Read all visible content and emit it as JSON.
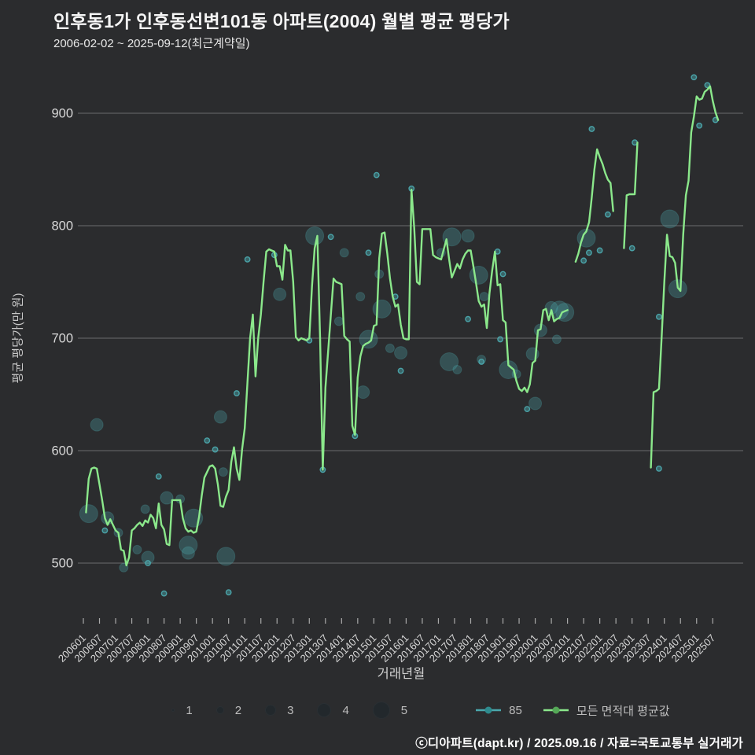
{
  "header": {
    "title": "인후동1가 인후동선변101동 아파트(2004) 월별 평균 평당가",
    "subtitle": "2006-02-02 ~ 2025-09-12(최근계약일)"
  },
  "footer": {
    "text": "ⓒ디아파트(dapt.kr) / 2025.09.16 / 자료=국토교통부 실거래가"
  },
  "axes": {
    "x_title": "거래년월",
    "y_title": "평균 평당가(만 원)",
    "y_ticks": [
      500,
      600,
      700,
      800,
      900
    ],
    "x_ticks": [
      "200601",
      "200607",
      "200701",
      "200707",
      "200801",
      "200807",
      "200901",
      "200907",
      "201001",
      "201007",
      "201101",
      "201107",
      "201201",
      "201207",
      "201301",
      "201307",
      "201401",
      "201407",
      "201501",
      "201507",
      "201601",
      "201607",
      "201701",
      "201707",
      "201801",
      "201807",
      "201901",
      "201907",
      "202001",
      "202007",
      "202101",
      "202107",
      "202201",
      "202207",
      "202301",
      "202307",
      "202401",
      "202407",
      "202501",
      "202507"
    ]
  },
  "legend": {
    "sizes": [
      "1",
      "2",
      "3",
      "4",
      "5"
    ],
    "series": [
      {
        "label": "85",
        "color": "#4ba8ad",
        "dot_color": "#2e8b8e"
      },
      {
        "label": "모든 면적대 평균값",
        "color": "#8be88b",
        "dot_color": "#55a857"
      }
    ]
  },
  "colors": {
    "background": "#2b2c2e",
    "gridline": "rgba(255,255,255,0.30)",
    "tick": "#aaaaaa",
    "axis_text": "#d8d8d8",
    "line_green": "#8be88b",
    "bubble_teal": "#4ba8ad"
  },
  "chart_data": {
    "type": "line+scatter",
    "title": "인후동1가 인후동선변101동 아파트(2004) 월별 평균 평당가",
    "xlabel": "거래년월",
    "ylabel": "평균 평당가(만 원)",
    "x_start_month": "2006-01",
    "x_end_month": "2025-09",
    "ylim": [
      460,
      945
    ],
    "grid": true,
    "legend_position": "bottom",
    "series": [
      {
        "name": "모든 면적대 평균값",
        "type": "line",
        "color": "#8be88b",
        "monthly_values": [
          null,
          545,
          575,
          584,
          585,
          584,
          570,
          556,
          540,
          534,
          539,
          534,
          529,
          527,
          512,
          511,
          498,
          505,
          529,
          531,
          534,
          536,
          533,
          538,
          536,
          543,
          540,
          531,
          553,
          534,
          530,
          517,
          516,
          556,
          556,
          556,
          556,
          540,
          531,
          528,
          529,
          527,
          528,
          541,
          560,
          576,
          581,
          586,
          587,
          584,
          570,
          551,
          550,
          559,
          565,
          590,
          603,
          584,
          574,
          601,
          620,
          660,
          700,
          721,
          666,
          700,
          721,
          750,
          777,
          779,
          778,
          777,
          764,
          764,
          752,
          783,
          778,
          778,
          750,
          701,
          698,
          700,
          699,
          698,
          700,
          746,
          780,
          791,
          700,
          583,
          656,
          688,
          720,
          753,
          750,
          749,
          748,
          702,
          699,
          697,
          622,
          614,
          665,
          684,
          693,
          695,
          696,
          698,
          711,
          712,
          771,
          793,
          794,
          775,
          753,
          737,
          728,
          730,
          712,
          700,
          699,
          699,
          832,
          798,
          750,
          748,
          797,
          797,
          797,
          797,
          774,
          772,
          771,
          770,
          779,
          788,
          770,
          754,
          760,
          766,
          762,
          770,
          775,
          778,
          778,
          764,
          749,
          733,
          728,
          730,
          709,
          740,
          760,
          777,
          747,
          748,
          716,
          714,
          676,
          674,
          672,
          662,
          655,
          653,
          656,
          652,
          659,
          678,
          680,
          707,
          708,
          725,
          726,
          716,
          725,
          715,
          717,
          718,
          723,
          724,
          725,
          null,
          null,
          768,
          775,
          785,
          792,
          795,
          803,
          825,
          850,
          868,
          861,
          855,
          847,
          841,
          838,
          813,
          null,
          null,
          null,
          780,
          827,
          828,
          828,
          828,
          874,
          null,
          null,
          null,
          null,
          585,
          652,
          653,
          655,
          701,
          750,
          792,
          773,
          772,
          767,
          745,
          742,
          792,
          827,
          840,
          883,
          897,
          915,
          912,
          913,
          919,
          921,
          924,
          911,
          901,
          894
        ]
      },
      {
        "name": "85",
        "type": "bubble",
        "color": "#4ba8ad",
        "size_unit": "거래건수",
        "points": [
          [
            2,
            544,
            4
          ],
          [
            5,
            623,
            3
          ],
          [
            8,
            529,
            1
          ],
          [
            9,
            540,
            3
          ],
          [
            13,
            527,
            2
          ],
          [
            15,
            496,
            2
          ],
          [
            20,
            512,
            2
          ],
          [
            23,
            548,
            2
          ],
          [
            24,
            505,
            3
          ],
          [
            24,
            500,
            1
          ],
          [
            28,
            577,
            1
          ],
          [
            30,
            473,
            1
          ],
          [
            31,
            558,
            3
          ],
          [
            36,
            557,
            2
          ],
          [
            39,
            516,
            4
          ],
          [
            39,
            509,
            3
          ],
          [
            41,
            540,
            4
          ],
          [
            46,
            609,
            1
          ],
          [
            49,
            601,
            1
          ],
          [
            51,
            630,
            3
          ],
          [
            52,
            581,
            2
          ],
          [
            53,
            506,
            4
          ],
          [
            54,
            474,
            1
          ],
          [
            57,
            651,
            1
          ],
          [
            61,
            770,
            1
          ],
          [
            71,
            774,
            1
          ],
          [
            73,
            739,
            3
          ],
          [
            84,
            698,
            1
          ],
          [
            86,
            791,
            4
          ],
          [
            89,
            583,
            1
          ],
          [
            92,
            790,
            1
          ],
          [
            95,
            715,
            2
          ],
          [
            97,
            776,
            2
          ],
          [
            101,
            613,
            1
          ],
          [
            103,
            737,
            2
          ],
          [
            104,
            652,
            3
          ],
          [
            106,
            776,
            1
          ],
          [
            106,
            699,
            4
          ],
          [
            109,
            845,
            1
          ],
          [
            110,
            757,
            2
          ],
          [
            111,
            726,
            4
          ],
          [
            114,
            691,
            2
          ],
          [
            116,
            737,
            1
          ],
          [
            118,
            687,
            3
          ],
          [
            118,
            671,
            1
          ],
          [
            122,
            833,
            1
          ],
          [
            133,
            776,
            2
          ],
          [
            136,
            679,
            4
          ],
          [
            137,
            790,
            4
          ],
          [
            139,
            672,
            2
          ],
          [
            143,
            791,
            3
          ],
          [
            143,
            717,
            1
          ],
          [
            147,
            756,
            4
          ],
          [
            148,
            681,
            2
          ],
          [
            148,
            679,
            1
          ],
          [
            149,
            737,
            2
          ],
          [
            154,
            777,
            1
          ],
          [
            155,
            699,
            1
          ],
          [
            156,
            757,
            1
          ],
          [
            158,
            672,
            4
          ],
          [
            161,
            668,
            2
          ],
          [
            165,
            637,
            1
          ],
          [
            167,
            686,
            3
          ],
          [
            168,
            642,
            3
          ],
          [
            170,
            707,
            3
          ],
          [
            174,
            727,
            3
          ],
          [
            176,
            699,
            2
          ],
          [
            177,
            725,
            4
          ],
          [
            179,
            723,
            4
          ],
          [
            186,
            769,
            1
          ],
          [
            187,
            789,
            4
          ],
          [
            188,
            776,
            1
          ],
          [
            189,
            886,
            1
          ],
          [
            192,
            778,
            1
          ],
          [
            195,
            810,
            1
          ],
          [
            204,
            780,
            1
          ],
          [
            205,
            874,
            1
          ],
          [
            214,
            719,
            1
          ],
          [
            214,
            584,
            1
          ],
          [
            218,
            806,
            4
          ],
          [
            221,
            744,
            4
          ],
          [
            227,
            932,
            1
          ],
          [
            229,
            889,
            1
          ],
          [
            232,
            925,
            1
          ],
          [
            235,
            894,
            1
          ]
        ]
      }
    ]
  }
}
